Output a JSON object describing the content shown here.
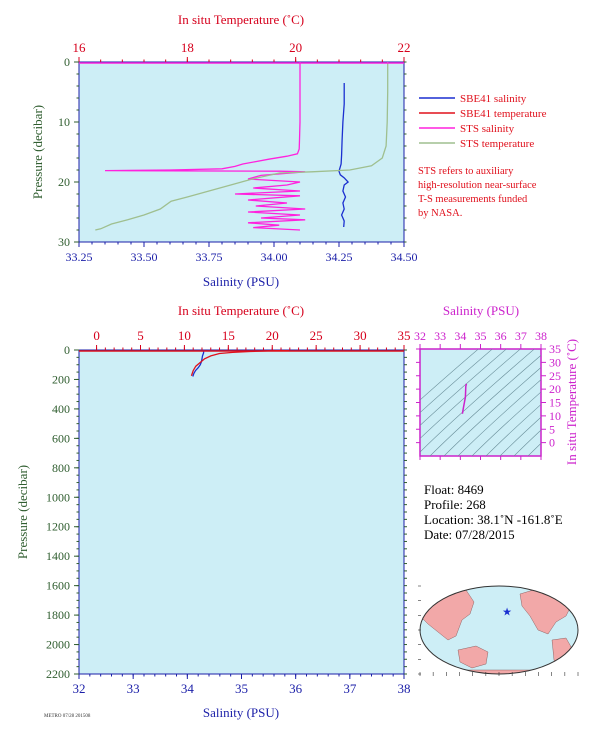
{
  "colors": {
    "plot_bg": "#cdeef6",
    "axis_blue": "#1b1fa8",
    "axis_red": "#d6001c",
    "axis_green": "#2f5d2f",
    "magenta": "#cc22cc",
    "sbe_salinity": "#1a2fd0",
    "sbe_temperature": "#e0101c",
    "sts_salinity": "#ff22dd",
    "sts_temperature": "#9fbf8f",
    "legend_note": "#e0101c"
  },
  "chart_data": [
    {
      "type": "line",
      "panel": "upper-profile",
      "top_axis": {
        "label": "In situ Temperature (˚C)",
        "range": [
          16,
          22
        ],
        "ticks": [
          "16",
          "18",
          "20",
          "22"
        ]
      },
      "bottom_axis": {
        "label": "Salinity (PSU)",
        "range": [
          33.25,
          34.5
        ],
        "ticks": [
          "33.25",
          "33.50",
          "33.75",
          "34.00",
          "34.25",
          "34.50"
        ]
      },
      "left_axis": {
        "label": "Pressure (decibar)",
        "range": [
          0,
          30
        ],
        "inverted": true,
        "ticks": [
          "0",
          "10",
          "20",
          "30"
        ]
      },
      "series": [
        {
          "name": "SBE41 salinity",
          "axis": "salinity",
          "points": [
            [
              34.27,
              3.5
            ],
            [
              34.27,
              7
            ],
            [
              34.265,
              10
            ],
            [
              34.262,
              13
            ],
            [
              34.26,
              15.5
            ],
            [
              34.258,
              17
            ],
            [
              34.25,
              18.2
            ],
            [
              34.255,
              18.8
            ],
            [
              34.27,
              19.3
            ],
            [
              34.285,
              20
            ],
            [
              34.27,
              20.5
            ],
            [
              34.265,
              21.5
            ],
            [
              34.275,
              22.5
            ],
            [
              34.265,
              23.5
            ],
            [
              34.27,
              24.5
            ],
            [
              34.26,
              25.5
            ],
            [
              34.27,
              26.5
            ],
            [
              34.268,
              27.5
            ]
          ]
        },
        {
          "name": "SBE41 temperature",
          "axis": "temperature",
          "points": []
        },
        {
          "name": "STS salinity",
          "axis": "salinity",
          "points": [
            [
              34.1,
              0
            ],
            [
              34.1,
              5
            ],
            [
              34.1,
              10
            ],
            [
              34.098,
              13
            ],
            [
              34.097,
              14.5
            ],
            [
              34.09,
              15.3
            ],
            [
              34.05,
              15.7
            ],
            [
              33.98,
              16.2
            ],
            [
              33.93,
              16.6
            ],
            [
              33.88,
              17
            ],
            [
              33.85,
              17.4
            ],
            [
              33.8,
              17.8
            ],
            [
              33.6,
              18
            ],
            [
              33.35,
              18.1
            ],
            [
              34.02,
              18.2
            ],
            [
              34.12,
              18.3
            ],
            [
              33.95,
              18.9
            ],
            [
              33.9,
              19.5
            ],
            [
              34.1,
              20
            ],
            [
              34.05,
              20.5
            ],
            [
              33.92,
              21
            ],
            [
              34.1,
              21.5
            ],
            [
              33.85,
              22
            ],
            [
              34.1,
              22.3
            ],
            [
              33.9,
              23
            ],
            [
              34.05,
              23.5
            ],
            [
              33.93,
              24
            ],
            [
              34.12,
              24.5
            ],
            [
              33.9,
              25
            ],
            [
              34.1,
              25.5
            ],
            [
              33.95,
              26
            ],
            [
              34.12,
              26.3
            ],
            [
              33.9,
              26.8
            ],
            [
              34.02,
              27.2
            ],
            [
              33.92,
              27.6
            ],
            [
              34.1,
              28
            ]
          ]
        },
        {
          "name": "STS temperature",
          "axis": "temperature",
          "points": [
            [
              21.7,
              0
            ],
            [
              21.7,
              5
            ],
            [
              21.69,
              10
            ],
            [
              21.67,
              14
            ],
            [
              21.6,
              16
            ],
            [
              21.4,
              17.3
            ],
            [
              21.0,
              18
            ],
            [
              20.3,
              18.3
            ],
            [
              19.7,
              18.5
            ],
            [
              19.2,
              19.5
            ],
            [
              18.8,
              20.5
            ],
            [
              18.4,
              21.5
            ],
            [
              18.0,
              22.5
            ],
            [
              17.7,
              23.2
            ],
            [
              17.5,
              24.5
            ],
            [
              17.2,
              25.5
            ],
            [
              16.9,
              26.3
            ],
            [
              16.6,
              27
            ],
            [
              16.4,
              27.8
            ],
            [
              16.3,
              28
            ]
          ]
        }
      ],
      "legend": {
        "position": "right",
        "entries": [
          {
            "label": "SBE41 salinity",
            "color": "#1a2fd0"
          },
          {
            "label": "SBE41 temperature",
            "color": "#e0101c"
          },
          {
            "label": "STS salinity",
            "color": "#ff22dd"
          },
          {
            "label": "STS temperature",
            "color": "#9fbf8f"
          }
        ],
        "note": [
          "STS refers to auxiliary",
          "high-resolution near-surface",
          "T-S measurements funded",
          "by NASA."
        ]
      }
    },
    {
      "type": "line",
      "panel": "lower-profile",
      "top_axis": {
        "label": "In situ Temperature (˚C)",
        "range": [
          -2,
          35
        ],
        "ticks": [
          "0",
          "5",
          "10",
          "15",
          "20",
          "25",
          "30",
          "35"
        ]
      },
      "bottom_axis": {
        "label": "Salinity (PSU)",
        "range": [
          32,
          38
        ],
        "ticks": [
          "32",
          "33",
          "34",
          "35",
          "36",
          "37",
          "38"
        ]
      },
      "left_axis": {
        "label": "Pressure (decibar)",
        "range": [
          0,
          2200
        ],
        "inverted": true,
        "ticks": [
          "0",
          "200",
          "400",
          "600",
          "800",
          "1000",
          "1200",
          "1400",
          "1600",
          "1800",
          "2000",
          "2200"
        ]
      },
      "series": [
        {
          "name": "salinity",
          "axis": "salinity",
          "points": [
            [
              34.3,
              0
            ],
            [
              34.3,
              20
            ],
            [
              34.28,
              40
            ],
            [
              34.27,
              60
            ],
            [
              34.26,
              80
            ],
            [
              34.24,
              100
            ],
            [
              34.2,
              120
            ],
            [
              34.15,
              140
            ],
            [
              34.12,
              160
            ],
            [
              34.1,
              180
            ]
          ]
        },
        {
          "name": "temperature",
          "axis": "temperature",
          "points": [
            [
              21.9,
              0
            ],
            [
              21.5,
              3
            ],
            [
              19.5,
              6
            ],
            [
              17.5,
              10
            ],
            [
              15.5,
              16
            ],
            [
              14.0,
              24
            ],
            [
              13.0,
              40
            ],
            [
              12.3,
              60
            ],
            [
              11.8,
              85
            ],
            [
              11.3,
              110
            ],
            [
              11.0,
              140
            ],
            [
              10.8,
              175
            ]
          ]
        }
      ]
    },
    {
      "type": "scatter",
      "panel": "ts-diagram",
      "title": "Salinity (PSU)",
      "x_axis": {
        "label": "Salinity (PSU)",
        "range": [
          32,
          38
        ],
        "ticks": [
          "32",
          "33",
          "34",
          "35",
          "36",
          "37",
          "38"
        ]
      },
      "y_axis": {
        "label": "In situ Temperature (˚C)",
        "range": [
          -5,
          35
        ],
        "ticks": [
          "0",
          "5",
          "10",
          "15",
          "20",
          "25",
          "30",
          "35"
        ]
      },
      "series": [
        {
          "name": "profile",
          "points": [
            [
              34.1,
              10.8
            ],
            [
              34.15,
              13
            ],
            [
              34.2,
              15
            ],
            [
              34.25,
              17
            ],
            [
              34.26,
              19
            ],
            [
              34.27,
              21
            ],
            [
              34.3,
              22
            ]
          ]
        }
      ]
    }
  ],
  "float_info": {
    "float": "Float: 8469",
    "profile": "Profile: 268",
    "location": "Location: 38.1˚N  -161.8˚E",
    "date": "Date: 07/28/2015"
  },
  "map": {
    "marker": {
      "lat": 38.1,
      "lon": -161.8
    }
  },
  "footer_stamp": "METRO 07/28 201508"
}
